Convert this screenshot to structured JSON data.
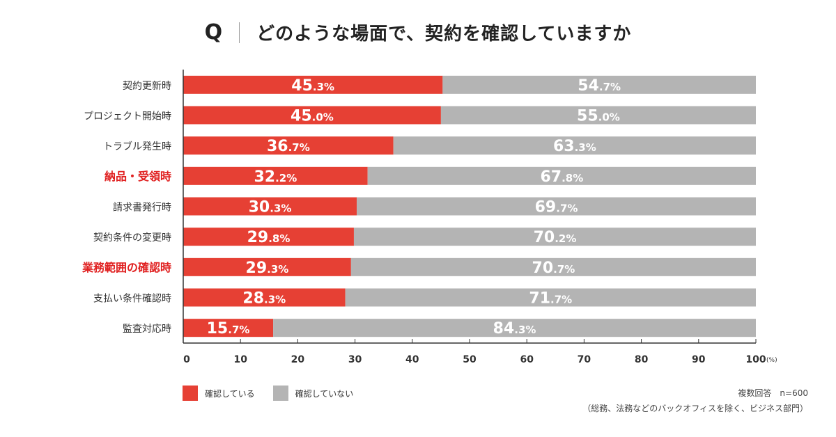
{
  "title": {
    "q": "Q",
    "text": "どのような場面で、契約を確認していますか"
  },
  "colors": {
    "confirmed": "#e64034",
    "not_confirmed": "#b4b4b4",
    "highlight_label": "#e02020"
  },
  "chart_data": {
    "type": "bar",
    "orientation": "horizontal",
    "stacked": true,
    "title": "どのような場面で、契約を確認していますか",
    "categories": [
      "契約更新時",
      "プロジェクト開始時",
      "トラブル発生時",
      "納品・受領時",
      "請求書発行時",
      "契約条件の変更時",
      "業務範囲の確認時",
      "支払い条件確認時",
      "監査対応時"
    ],
    "highlighted_categories": [
      "納品・受領時",
      "業務範囲の確認時"
    ],
    "series": [
      {
        "name": "確認している",
        "values": [
          45.3,
          45.0,
          36.7,
          32.2,
          30.3,
          29.8,
          29.3,
          28.3,
          15.7
        ]
      },
      {
        "name": "確認していない",
        "values": [
          54.7,
          55.0,
          63.3,
          67.8,
          69.7,
          70.2,
          70.7,
          71.7,
          84.3
        ]
      }
    ],
    "xlim": [
      0,
      100
    ],
    "xticks": [
      "0",
      "10",
      "20",
      "30",
      "40",
      "50",
      "60",
      "70",
      "80",
      "90",
      "100"
    ],
    "xunit": "(%)",
    "value_suffix": "%",
    "legend_position": "bottom-left"
  },
  "legend": {
    "confirmed": "確認している",
    "not_confirmed": "確認していない"
  },
  "note": {
    "sample": "複数回答　n=600",
    "scope": "（総務、法務などのバックオフィスを除く、ビジネス部門）"
  }
}
